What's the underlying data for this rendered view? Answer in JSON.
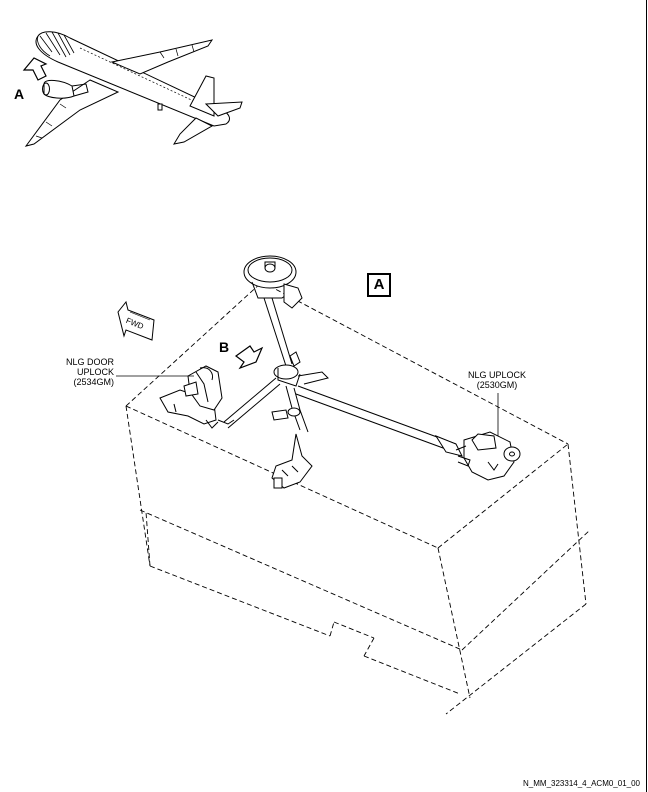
{
  "view_marker_a": "A",
  "view_marker_b": "B",
  "detail_label": "A",
  "fwd_label": "FWD",
  "callouts": {
    "door_uplock": {
      "line1": "NLG DOOR",
      "line2": "UPLOCK",
      "line3": "(2534GM)"
    },
    "nlg_uplock": {
      "line1": "NLG UPLOCK",
      "line2": "(2530GM)"
    }
  },
  "footer": "N_MM_323314_4_ACM0_01_00"
}
